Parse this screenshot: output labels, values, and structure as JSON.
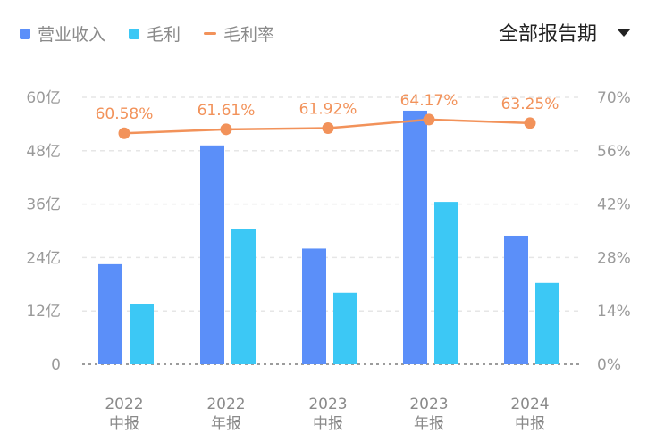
{
  "legend": {
    "revenue": "营业收入",
    "gross_profit": "毛利",
    "margin": "毛利率"
  },
  "period_select": {
    "label": "全部报告期"
  },
  "colors": {
    "revenue": "#5B8FF9",
    "gross_profit": "#3CC8F5",
    "margin": "#F2925A"
  },
  "chart_data": {
    "type": "bar",
    "categories": [
      [
        "2022",
        "中报"
      ],
      [
        "2022",
        "年报"
      ],
      [
        "2023",
        "中报"
      ],
      [
        "2023",
        "年报"
      ],
      [
        "2024",
        "中报"
      ]
    ],
    "series": [
      {
        "name": "营业收入",
        "type": "bar",
        "axis": "left",
        "values": [
          22.5,
          49.2,
          26.0,
          57.0,
          28.9
        ]
      },
      {
        "name": "毛利",
        "type": "bar",
        "axis": "left",
        "values": [
          13.6,
          30.3,
          16.1,
          36.5,
          18.3
        ]
      },
      {
        "name": "毛利率",
        "type": "line",
        "axis": "right",
        "values": [
          60.58,
          61.61,
          61.92,
          64.17,
          63.25
        ],
        "labels": [
          "60.58%",
          "61.61%",
          "61.92%",
          "64.17%",
          "63.25%"
        ]
      }
    ],
    "y_left": {
      "min": 0,
      "max": 60,
      "ticks": [
        "0",
        "12亿",
        "24亿",
        "36亿",
        "48亿",
        "60亿"
      ]
    },
    "y_right": {
      "min": 0,
      "max": 70,
      "ticks": [
        "0%",
        "14%",
        "28%",
        "42%",
        "56%",
        "70%"
      ]
    },
    "grid": true,
    "legend_position": "top-left"
  }
}
